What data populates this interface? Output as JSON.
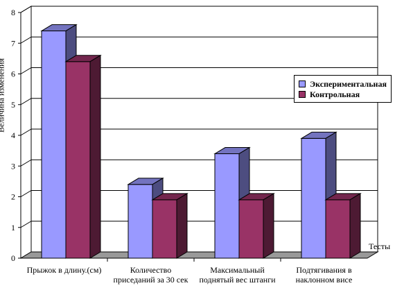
{
  "chart_data": {
    "type": "bar",
    "categories": [
      "Прыжок в длину.(см)",
      "Количество приседаний за 30 сек",
      "Максимальный поднятый вес штанги",
      "Подтягивания в наклонном висе"
    ],
    "category_lines": [
      [
        "Прыжок в длину.(см)"
      ],
      [
        "Количество",
        "приседаний за 30 сек"
      ],
      [
        "Максимальный",
        "поднятый вес штанги"
      ],
      [
        "Подтягивания в",
        "наклонном висе"
      ]
    ],
    "series": [
      {
        "name": "Экспериментальная",
        "values": [
          7.4,
          2.4,
          3.4,
          3.9
        ],
        "color": "#9999ff"
      },
      {
        "name": "Контрольная",
        "values": [
          6.4,
          1.9,
          1.9,
          1.9
        ],
        "color": "#993366"
      }
    ],
    "xlabel": "Тесты",
    "ylabel": "Величина изменения",
    "ylim": [
      0,
      8
    ],
    "yticks": [
      0,
      1,
      2,
      3,
      4,
      5,
      6,
      7,
      8
    ],
    "grid": true,
    "legend_position": "right"
  }
}
